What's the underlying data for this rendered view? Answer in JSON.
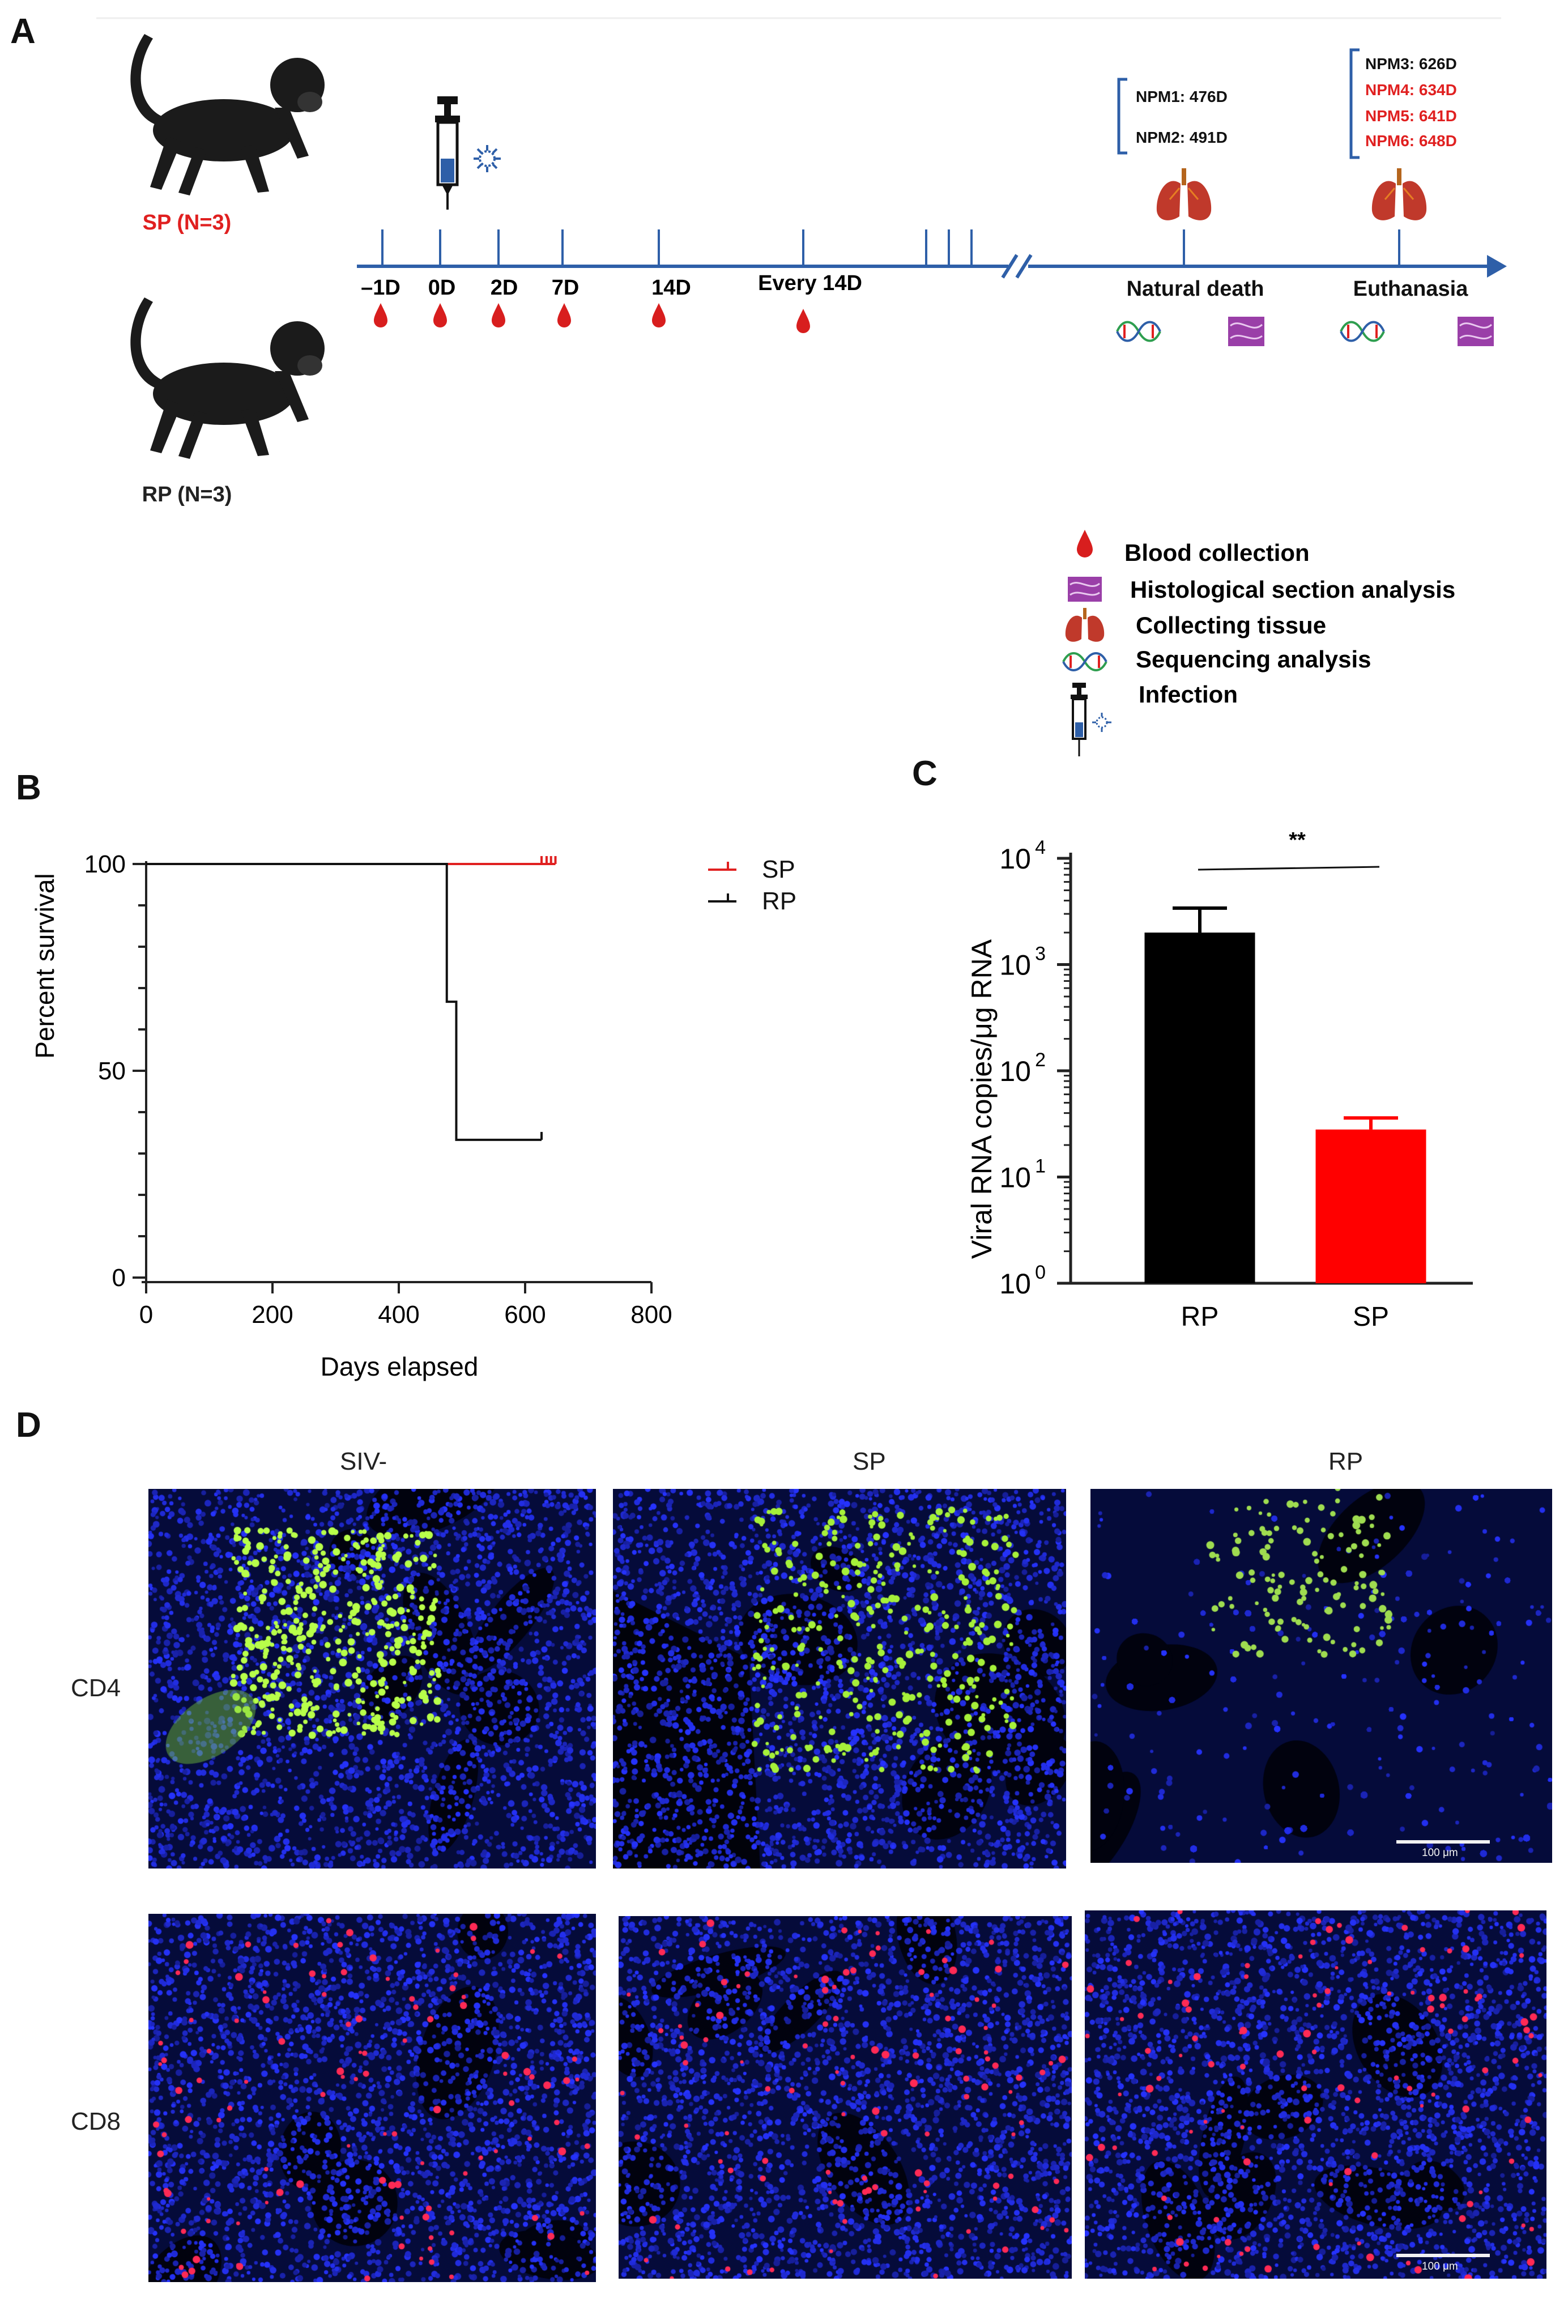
{
  "panels": {
    "A": "A",
    "B": "B",
    "C": "C",
    "D": "D"
  },
  "panelA": {
    "groups": [
      {
        "label": "SP (N=3)",
        "color": "#e02020"
      },
      {
        "label": "RP (N=3)",
        "color": "#222222"
      }
    ],
    "timeline_ticks": [
      "–1D",
      "0D",
      "2D",
      "7D",
      "14D",
      "Every 14D"
    ],
    "events": [
      "Natural death",
      "Euthanasia"
    ],
    "natural_death": [
      {
        "label": "NPM1: 476D",
        "color": "#111111"
      },
      {
        "label": "NPM2: 491D",
        "color": "#111111"
      }
    ],
    "euthanasia": [
      {
        "label": "NPM3: 626D",
        "color": "#111111"
      },
      {
        "label": "NPM4: 634D",
        "color": "#e02020"
      },
      {
        "label": "NPM5: 641D",
        "color": "#e02020"
      },
      {
        "label": "NPM6: 648D",
        "color": "#e02020"
      }
    ],
    "legend": [
      {
        "icon": "blood-drop-icon",
        "label": "Blood collection"
      },
      {
        "icon": "histology-icon",
        "label": "Histological section analysis"
      },
      {
        "icon": "lung-icon",
        "label": "Collecting tissue"
      },
      {
        "icon": "dna-icon",
        "label": "Sequencing analysis"
      },
      {
        "icon": "syringe-icon",
        "label": "Infection"
      }
    ],
    "colors": {
      "timeline": "#2e5fa8",
      "blood": "#d81e1e",
      "lung": "#c0392b",
      "histology": "#9a3fa8"
    }
  },
  "chart_data": [
    {
      "type": "line",
      "xlabel": "Days elapsed",
      "ylabel": "Percent survival",
      "xlim": [
        0,
        800
      ],
      "ylim": [
        0,
        100
      ],
      "xticks": [
        0,
        200,
        400,
        600,
        800
      ],
      "yticks": [
        0,
        50,
        100
      ],
      "legend": "top-right",
      "series": [
        {
          "name": "SP",
          "color": "#e02020",
          "x": [
            0,
            626,
            634,
            641,
            648
          ],
          "y": [
            100,
            100,
            100,
            100,
            100
          ]
        },
        {
          "name": "RP",
          "color": "#111111",
          "x": [
            0,
            476,
            476,
            491,
            491,
            626
          ],
          "y": [
            100,
            100,
            66.7,
            66.7,
            33.3,
            33.3
          ]
        }
      ]
    },
    {
      "type": "bar",
      "ylabel": "Viral RNA copies/μg RNA",
      "yscale": "log",
      "ylim": [
        1,
        10000
      ],
      "ytick_exponents": [
        "0",
        "1",
        "2",
        "3",
        "4"
      ],
      "categories": [
        "RP",
        "SP"
      ],
      "values": [
        2000,
        28
      ],
      "error_upper": [
        3400,
        36
      ],
      "colors": [
        "#000000",
        "#ff0000"
      ],
      "significance": "**"
    }
  ],
  "panelD": {
    "columns": [
      "SIV-",
      "SP",
      "RP"
    ],
    "rows": [
      "CD4",
      "CD8"
    ],
    "scale_label": "100 μm"
  }
}
